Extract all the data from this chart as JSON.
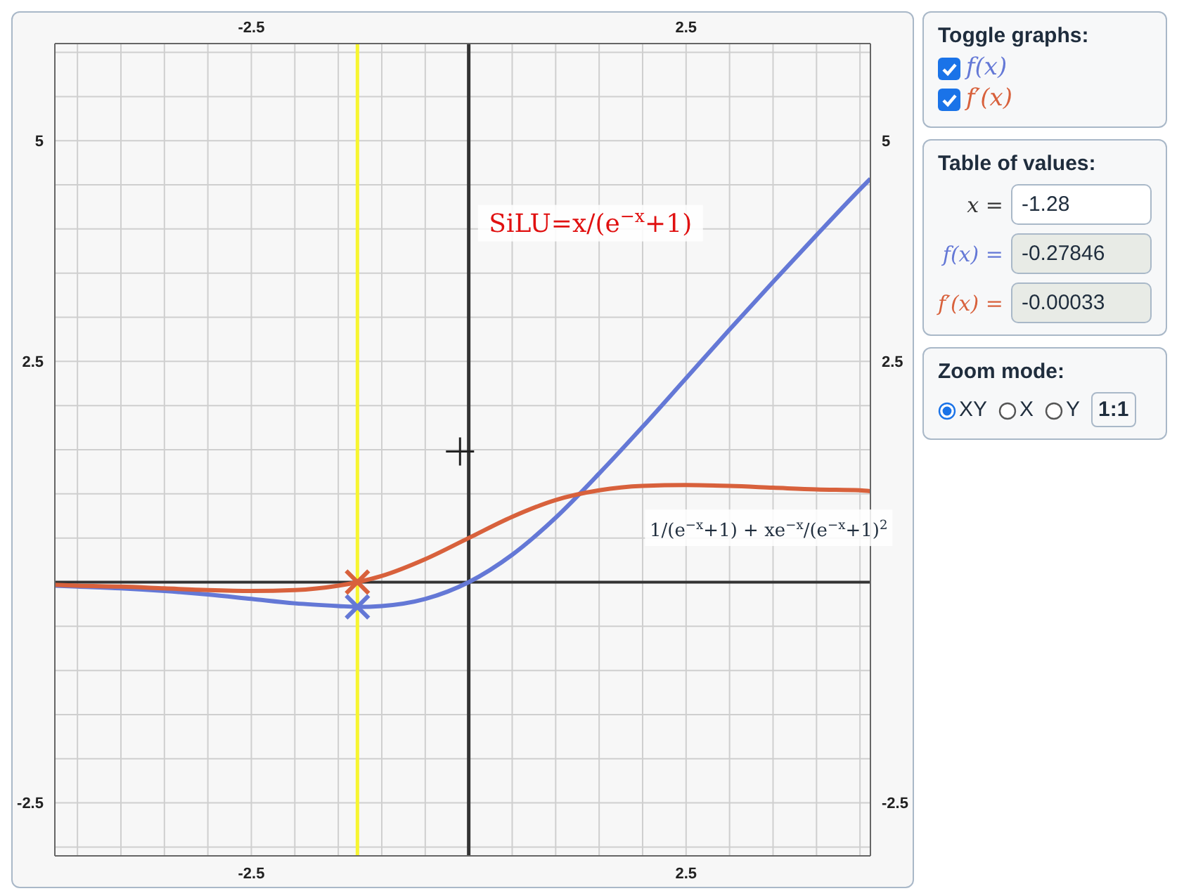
{
  "chart_data": {
    "type": "line",
    "legend_title": "Toggle graphs:",
    "legend": "right",
    "grid": true,
    "xlim": [
      -4.76,
      4.62
    ],
    "ylim": [
      -3.1,
      6.1
    ],
    "xticks": [
      {
        "value": -4.5,
        "label": null
      },
      {
        "value": -4,
        "label": null
      },
      {
        "value": -3.5,
        "label": null
      },
      {
        "value": -3,
        "label": null
      },
      {
        "value": -2.5,
        "label": "-2.5"
      },
      {
        "value": -2,
        "label": null
      },
      {
        "value": -1.5,
        "label": null
      },
      {
        "value": -1,
        "label": null
      },
      {
        "value": -0.5,
        "label": null
      },
      {
        "value": 0,
        "label": null
      },
      {
        "value": 0.5,
        "label": null
      },
      {
        "value": 1,
        "label": null
      },
      {
        "value": 1.5,
        "label": null
      },
      {
        "value": 2,
        "label": null
      },
      {
        "value": 2.5,
        "label": "2.5"
      },
      {
        "value": 3,
        "label": null
      },
      {
        "value": 3.5,
        "label": null
      },
      {
        "value": 4,
        "label": null
      },
      {
        "value": 4.5,
        "label": null
      }
    ],
    "yticks": [
      {
        "value": -3,
        "label": null
      },
      {
        "value": -2.5,
        "label": "-2.5"
      },
      {
        "value": -2,
        "label": null
      },
      {
        "value": -1.5,
        "label": null
      },
      {
        "value": -1,
        "label": null
      },
      {
        "value": -0.5,
        "label": null
      },
      {
        "value": 0,
        "label": null
      },
      {
        "value": 0.5,
        "label": null
      },
      {
        "value": 1,
        "label": null
      },
      {
        "value": 1.5,
        "label": null
      },
      {
        "value": 2,
        "label": null
      },
      {
        "value": 2.5,
        "label": "2.5"
      },
      {
        "value": 3,
        "label": null
      },
      {
        "value": 3.5,
        "label": null
      },
      {
        "value": 4,
        "label": null
      },
      {
        "value": 4.5,
        "label": null
      },
      {
        "value": 5,
        "label": "5"
      },
      {
        "value": 5.5,
        "label": null
      },
      {
        "value": 6,
        "label": null
      }
    ],
    "x2lim": [
      -4.76,
      4.62
    ],
    "x2ticks": [
      -2.5,
      2.5
    ],
    "y2lim": [
      -3.1,
      6.1
    ],
    "y2ticks": [
      -2.5,
      2.5,
      5
    ],
    "ref_lines": [
      {
        "axis": "x",
        "value": 0,
        "color": "#333333"
      },
      {
        "axis": "y",
        "value": 0,
        "color": "#333333"
      },
      {
        "axis": "x",
        "value": -1.28,
        "color": "#f7f531"
      }
    ],
    "series": [
      {
        "name": "f(x)",
        "color": "#6478d6",
        "x": [
          -4.76,
          -4.5,
          -4,
          -3.5,
          -3,
          -2.5,
          -2,
          -1.5,
          -1.28,
          -1,
          -0.5,
          0,
          0.5,
          1,
          1.5,
          2,
          2.5,
          3,
          3.5,
          4,
          4.5,
          4.62
        ],
        "values": [
          -0.04,
          -0.05,
          -0.07,
          -0.1,
          -0.14,
          -0.19,
          -0.24,
          -0.27,
          -0.28,
          -0.27,
          -0.19,
          0,
          0.31,
          0.73,
          1.23,
          1.76,
          2.31,
          2.86,
          3.4,
          3.93,
          4.45,
          4.57
        ]
      },
      {
        "name": "f′(x)",
        "color": "#d8613c",
        "x": [
          -4.76,
          -4.5,
          -4,
          -3.5,
          -3,
          -2.5,
          -2,
          -1.5,
          -1.28,
          -1,
          -0.5,
          0,
          0.5,
          1,
          1.5,
          2,
          2.5,
          3,
          3.5,
          4,
          4.5,
          4.62
        ],
        "values": [
          -0.03,
          -0.04,
          -0.05,
          -0.07,
          -0.09,
          -0.1,
          -0.09,
          -0.04,
          0,
          0.07,
          0.26,
          0.5,
          0.74,
          0.93,
          1.04,
          1.09,
          1.1,
          1.09,
          1.07,
          1.05,
          1.04,
          1.03
        ]
      },
      {
        "type": "scatter",
        "marker": "cross",
        "color": "#6478d6",
        "x": [
          -1.28
        ],
        "values": [
          -0.28
        ]
      },
      {
        "type": "scatter",
        "marker": "cross",
        "color": "#d8613c",
        "x": [
          -1.28
        ],
        "values": [
          0
        ]
      }
    ],
    "annotations": [
      "SiLU=x/(e$^{−x}$+1)",
      "1/(e$^{−x}$+1) + xe$^{−x}$/(e$^{−x}$+1)$^{2}$",
      "Table of values:",
      "x =",
      "-1.28",
      "f(x) =",
      "-0.27846",
      "f′(x) =",
      "-0.00033",
      "Zoom mode:",
      "XY",
      "X",
      "Y",
      "1:1"
    ]
  }
}
